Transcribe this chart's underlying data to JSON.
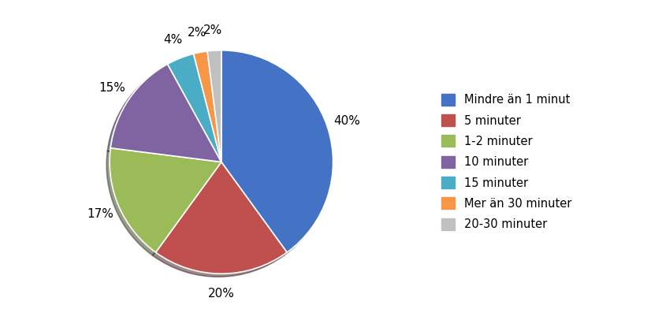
{
  "labels": [
    "Mindre än 1 minut",
    "5 minuter",
    "1-2 minuter",
    "10 minuter",
    "15 minuter",
    "Mer än 30 minuter",
    "20-30 minuter"
  ],
  "values": [
    40,
    20,
    17,
    15,
    4,
    2,
    2
  ],
  "colors": [
    "#4472C4",
    "#C0504D",
    "#9BBB59",
    "#8064A2",
    "#4BACC6",
    "#F79646",
    "#C0C0C0"
  ],
  "pct_labels": [
    "40%",
    "20%",
    "17%",
    "15%",
    "4%",
    "2%",
    "2%"
  ],
  "startangle": 90,
  "background_color": "#FFFFFF",
  "legend_fontsize": 10.5,
  "pct_fontsize": 11
}
